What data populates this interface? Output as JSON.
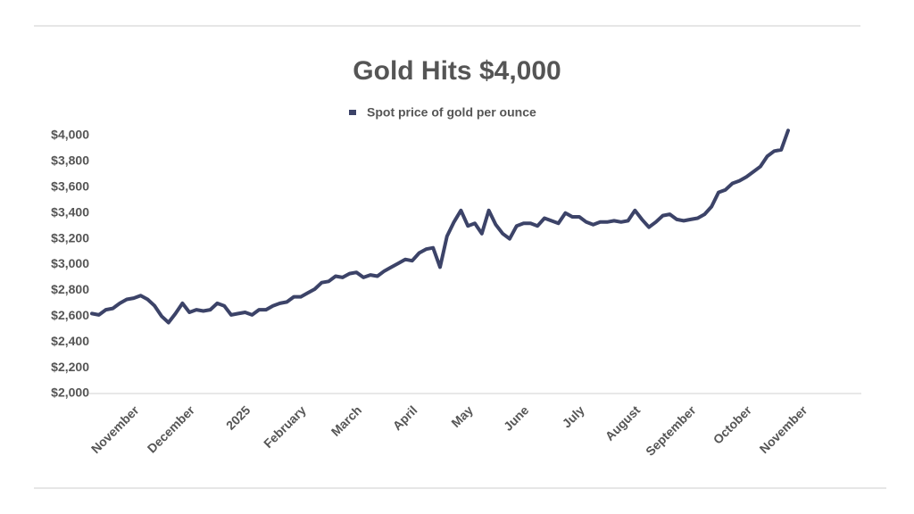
{
  "chart_data": {
    "type": "line",
    "title": "Gold Hits $4,000",
    "categories": [
      null,
      null,
      null,
      null,
      null,
      null,
      "November",
      null,
      null,
      null,
      null,
      null,
      null,
      null,
      "December",
      null,
      null,
      null,
      null,
      null,
      null,
      null,
      "2025",
      null,
      null,
      null,
      null,
      null,
      null,
      null,
      "February",
      null,
      null,
      null,
      null,
      null,
      null,
      null,
      "March",
      null,
      null,
      null,
      null,
      null,
      null,
      null,
      "April",
      null,
      null,
      null,
      null,
      null,
      null,
      null,
      "May",
      null,
      null,
      null,
      null,
      null,
      null,
      null,
      "June",
      null,
      null,
      null,
      null,
      null,
      null,
      null,
      "July",
      null,
      null,
      null,
      null,
      null,
      null,
      null,
      "August",
      null,
      null,
      null,
      null,
      null,
      null,
      null,
      "September",
      null,
      null,
      null,
      null,
      null,
      null,
      null,
      "October",
      null,
      null,
      null,
      null,
      null,
      null,
      null,
      "November",
      null,
      null,
      null,
      null,
      null,
      null,
      null
    ],
    "series": [
      {
        "name": "Spot price of gold per ounce",
        "color": "#3c4368",
        "values": [
          2620,
          2610,
          2650,
          2660,
          2700,
          2730,
          2740,
          2760,
          2730,
          2680,
          2600,
          2550,
          2620,
          2700,
          2630,
          2650,
          2640,
          2650,
          2700,
          2680,
          2610,
          2620,
          2630,
          2610,
          2650,
          2650,
          2680,
          2700,
          2710,
          2750,
          2750,
          2780,
          2810,
          2860,
          2870,
          2910,
          2900,
          2930,
          2940,
          2900,
          2920,
          2910,
          2950,
          2980,
          3010,
          3040,
          3030,
          3090,
          3120,
          3130,
          2980,
          3220,
          3330,
          3420,
          3300,
          3320,
          3240,
          3420,
          3310,
          3240,
          3200,
          3300,
          3320,
          3320,
          3300,
          3360,
          3340,
          3320,
          3400,
          3370,
          3370,
          3330,
          3310,
          3330,
          3330,
          3340,
          3330,
          3340,
          3420,
          3350,
          3290,
          3330,
          3380,
          3390,
          3350,
          3340,
          3350,
          3360,
          3390,
          3450,
          3560,
          3580,
          3630,
          3650,
          3680,
          3720,
          3760,
          3840,
          3880,
          3890,
          4040,
          null,
          null,
          null,
          null,
          null,
          null,
          null,
          null,
          null
        ]
      }
    ],
    "ylim": [
      2000,
      4000
    ],
    "yticks": [
      {
        "value": 2000,
        "label": "$2,000"
      },
      {
        "value": 2200,
        "label": "$2,200"
      },
      {
        "value": 2400,
        "label": "$2,400"
      },
      {
        "value": 2600,
        "label": "$2,600"
      },
      {
        "value": 2800,
        "label": "$2,800"
      },
      {
        "value": 3000,
        "label": "$3,000"
      },
      {
        "value": 3200,
        "label": "$3,200"
      },
      {
        "value": 3400,
        "label": "$3,400"
      },
      {
        "value": 3600,
        "label": "$3,600"
      },
      {
        "value": 3800,
        "label": "$3,800"
      },
      {
        "value": 4000,
        "label": "$4,000"
      }
    ],
    "grid": false
  }
}
